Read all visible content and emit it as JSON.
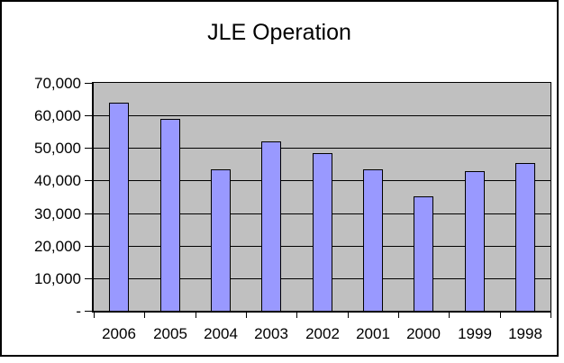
{
  "chart_data": {
    "type": "bar",
    "title": "JLE Operation",
    "categories": [
      "2006",
      "2005",
      "2004",
      "2003",
      "2002",
      "2001",
      "2000",
      "1999",
      "1998"
    ],
    "values": [
      64000,
      59000,
      43500,
      52000,
      48500,
      43500,
      35000,
      43000,
      45500
    ],
    "xlabel": "",
    "ylabel": "",
    "ylim": [
      0,
      70000
    ],
    "y_ticks": [
      {
        "value": 70000,
        "label": "70,000"
      },
      {
        "value": 60000,
        "label": "60,000"
      },
      {
        "value": 50000,
        "label": "50,000"
      },
      {
        "value": 40000,
        "label": "40,000"
      },
      {
        "value": 30000,
        "label": "30,000"
      },
      {
        "value": 20000,
        "label": "20,000"
      },
      {
        "value": 10000,
        "label": "10,000"
      },
      {
        "value": 0,
        "label": "-"
      }
    ],
    "grid": true,
    "legend": "none",
    "colors": {
      "bar_fill": "#9999FF",
      "bar_border": "#000000",
      "plot_background": "#C0C0C0",
      "gridline": "#000000",
      "chart_background": "#FFFFFF",
      "chart_border": "#000000",
      "text": "#000000"
    }
  }
}
